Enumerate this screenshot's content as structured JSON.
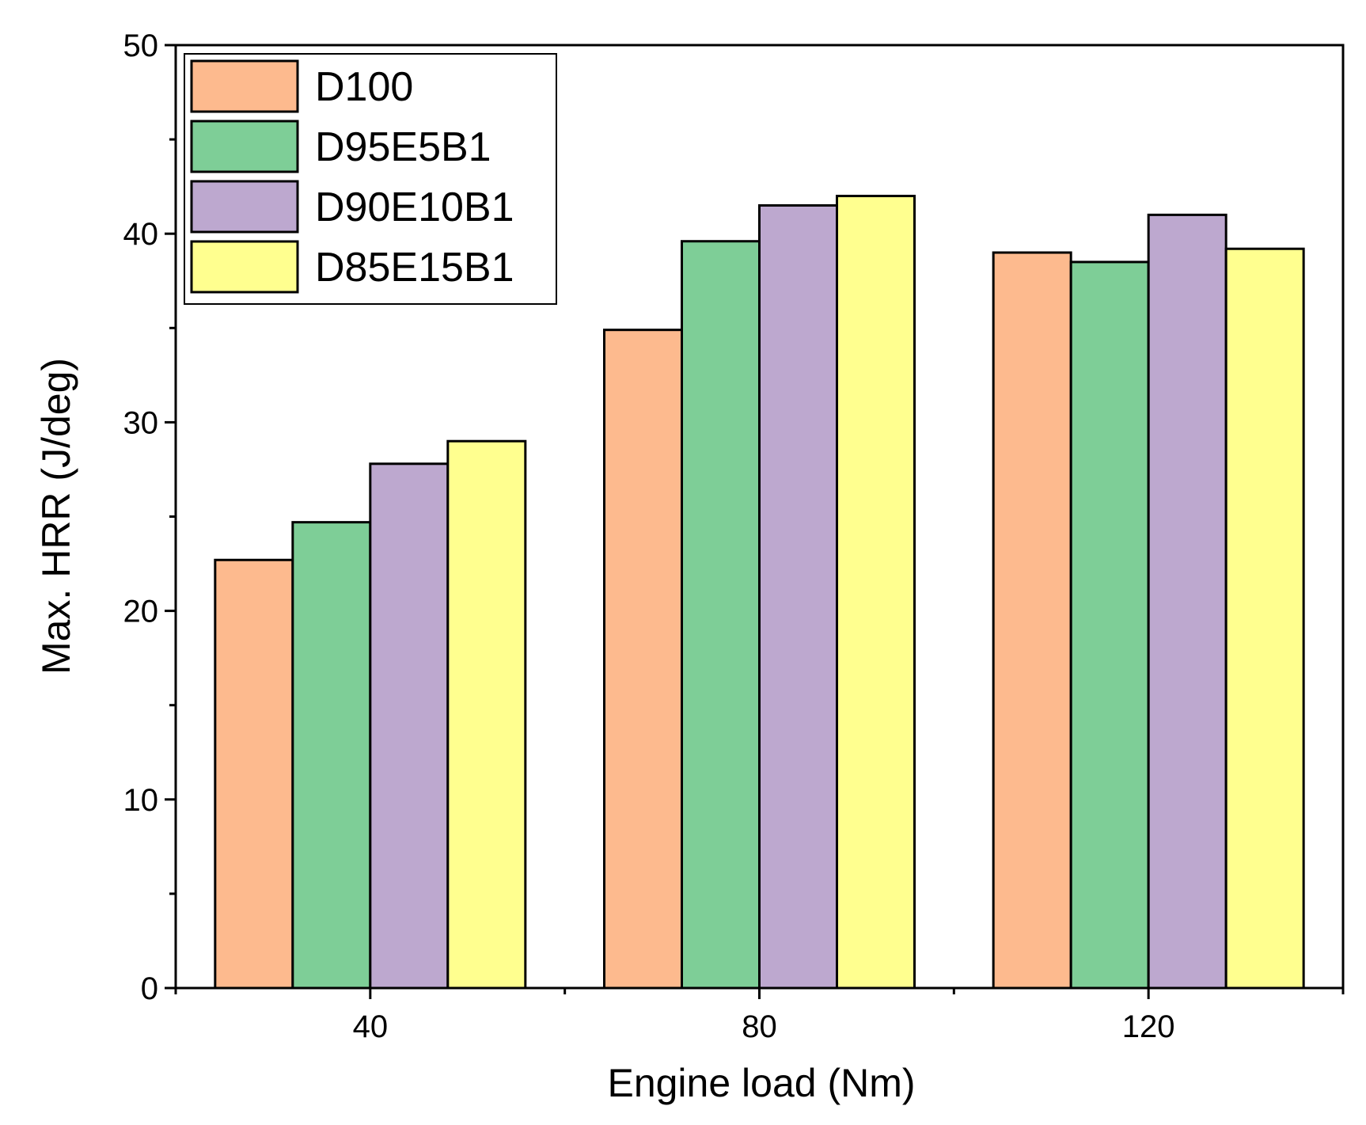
{
  "chart_data": {
    "type": "bar",
    "title": "",
    "xlabel": "Engine load (Nm)",
    "ylabel": "Max. HRR (J/deg)",
    "categories": [
      "40",
      "80",
      "120"
    ],
    "ylim": [
      0,
      50
    ],
    "yticks": [
      "0",
      "10",
      "20",
      "30",
      "40",
      "50"
    ],
    "legend_position": "top-left",
    "grid": false,
    "series": [
      {
        "name": "D100",
        "color": "#FDBA8E",
        "values": [
          22.7,
          34.9,
          39.0
        ]
      },
      {
        "name": "D95E5B1",
        "color": "#7ECE97",
        "values": [
          24.7,
          39.6,
          38.5
        ]
      },
      {
        "name": "D90E10B1",
        "color": "#BDA8CF",
        "values": [
          27.8,
          41.5,
          41.0
        ]
      },
      {
        "name": "D85E15B1",
        "color": "#FFFF8F",
        "values": [
          29.0,
          42.0,
          39.2
        ]
      }
    ]
  }
}
